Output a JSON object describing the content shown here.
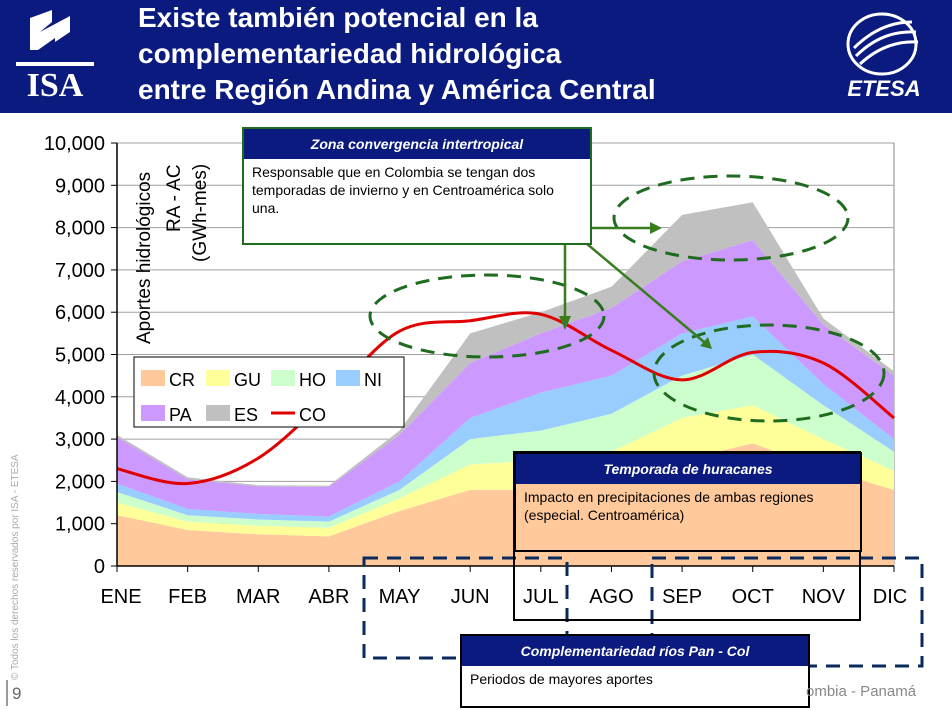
{
  "header": {
    "title_lines": [
      "Existe también potencial en la",
      "complementariedad hidrológica",
      "entre Región Andina y América Central"
    ],
    "left_logo_text": "ISA",
    "right_logo_text": "ETESA",
    "bg_color": "#0a1a7e"
  },
  "boxes": {
    "zona": {
      "title": "Zona convergencia intertropical",
      "body": "Responsable que en Colombia se tengan dos temporadas de invierno y en Centroamérica solo una."
    },
    "huracanes": {
      "title": "Temporada de huracanes",
      "body": "Impacto en precipitaciones de ambas regiones (especial. Centroamérica)"
    },
    "complement": {
      "title": "Complementariedad ríos Pan - Col",
      "body": "Periodos de mayores aportes"
    }
  },
  "footer": {
    "page_number": "9",
    "right_text": "ombia - Panamá",
    "copyright": "© Todos los derechos reservados por ISA - ETESA"
  },
  "chart_data": {
    "type": "area",
    "ylabel_lines": [
      "Aportes hidrológicos",
      "RA - AC",
      "(GWh-mes)"
    ],
    "categories": [
      "ENE",
      "FEB",
      "MAR",
      "ABR",
      "MAY",
      "JUN",
      "JUL",
      "AGO",
      "SEP",
      "OCT",
      "NOV",
      "DIC"
    ],
    "ylim": [
      0,
      10000
    ],
    "yticks": [
      "0",
      "1,000",
      "2,000",
      "3,000",
      "4,000",
      "5,000",
      "6,000",
      "7,000",
      "8,000",
      "9,000",
      "10,000"
    ],
    "grid": true,
    "legend_position": "left-middle",
    "series": [
      {
        "name": "CR",
        "color": "#ffc99b",
        "values": [
          1200,
          850,
          750,
          700,
          1300,
          1800,
          1800,
          1800,
          2500,
          2900,
          2300,
          1800
        ]
      },
      {
        "name": "GU",
        "color": "#ffff99",
        "values": [
          300,
          200,
          200,
          200,
          300,
          600,
          700,
          900,
          1000,
          900,
          700,
          450
        ]
      },
      {
        "name": "HO",
        "color": "#ccffcc",
        "values": [
          250,
          150,
          150,
          150,
          200,
          600,
          700,
          900,
          1000,
          1200,
          800,
          450
        ]
      },
      {
        "name": "NI",
        "color": "#99ccff",
        "values": [
          200,
          150,
          130,
          120,
          200,
          500,
          900,
          900,
          1000,
          900,
          500,
          300
        ]
      },
      {
        "name": "PA",
        "color": "#cc99ff",
        "values": [
          1100,
          700,
          650,
          700,
          1100,
          1300,
          1400,
          1600,
          1700,
          1800,
          1400,
          1500
        ]
      },
      {
        "name": "ES",
        "color": "#c0c0c0",
        "values": [
          50,
          50,
          30,
          30,
          100,
          700,
          500,
          500,
          1100,
          900,
          150,
          100
        ]
      }
    ],
    "line_series": {
      "name": "CO",
      "color": "#e00000",
      "values": [
        2300,
        1950,
        2550,
        4000,
        5550,
        5800,
        5950,
        5100,
        4400,
        5050,
        4800,
        3500
      ]
    },
    "accent_colors": {
      "arrow": "#3a7d1f",
      "ellipse": "#1f6b1f",
      "dashed_box": "#0a2a5e"
    }
  }
}
